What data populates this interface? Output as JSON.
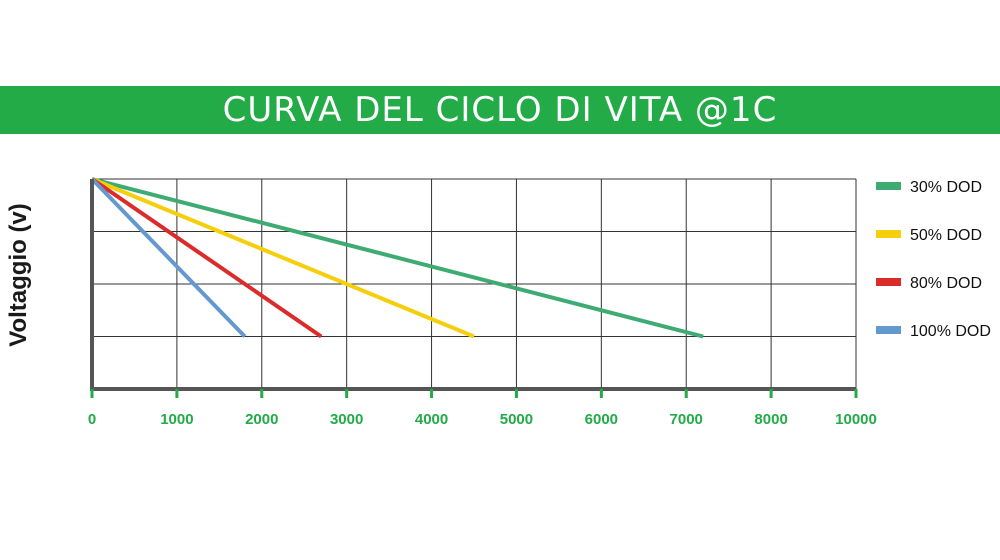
{
  "header": {
    "title": "CURVA DEL CICLO DI VITA @1C",
    "color": "#22ab47"
  },
  "chart_data": {
    "type": "line",
    "title": "CURVA DEL CICLO DI VITA @1C",
    "xlabel": "",
    "ylabel": "Voltaggio (v)",
    "xlim": [
      0,
      10000
    ],
    "ylim": [
      0,
      4
    ],
    "x_ticks": [
      "0",
      "1000",
      "2000",
      "3000",
      "4000",
      "5000",
      "6000",
      "7000",
      "8000",
      "10000"
    ],
    "grid": true,
    "legend_position": "right",
    "axis_color": "#555555",
    "tick_color": "#22ab47",
    "series": [
      {
        "name": "30% DOD",
        "color": "#3dab72",
        "x": [
          0,
          8000
        ],
        "y": [
          4,
          1
        ]
      },
      {
        "name": "50% DOD",
        "color": "#f5cf0c",
        "x": [
          0,
          5000
        ],
        "y": [
          4,
          1
        ]
      },
      {
        "name": "80% DOD",
        "color": "#dc2b2b",
        "x": [
          0,
          3000
        ],
        "y": [
          4,
          1
        ]
      },
      {
        "name": "100% DOD",
        "color": "#6399cf",
        "x": [
          0,
          2000
        ],
        "y": [
          4,
          1
        ]
      }
    ]
  }
}
